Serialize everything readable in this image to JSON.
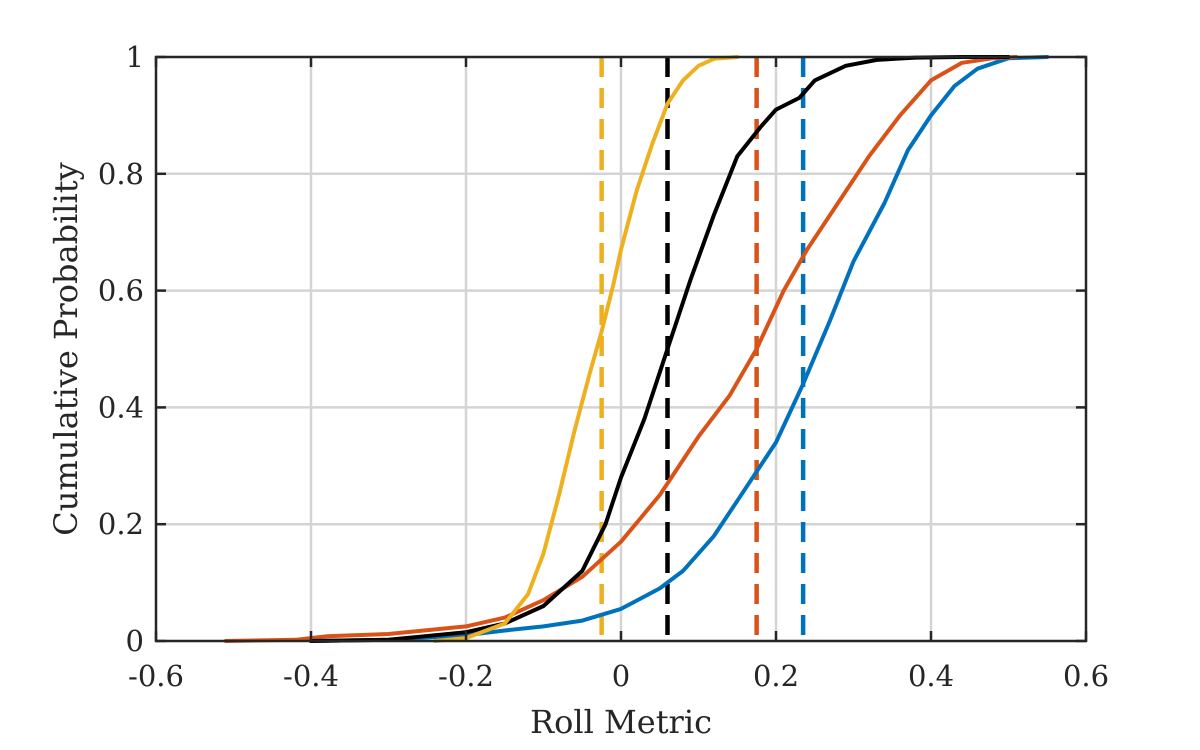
{
  "chart_data": {
    "type": "line",
    "title": "",
    "xlabel": "Roll Metric",
    "ylabel": "Cumulative Probability",
    "xlim": [
      -0.6,
      0.6
    ],
    "ylim": [
      0,
      1
    ],
    "xticks": [
      "-0.6",
      "-0.4",
      "-0.2",
      "0",
      "0.2",
      "0.4",
      "0.6"
    ],
    "yticks": [
      "0",
      "0.2",
      "0.4",
      "0.6",
      "0.8",
      "1"
    ],
    "grid": true,
    "legend": "none",
    "series": [
      {
        "color": "#0072BD",
        "x": [
          -0.4,
          -0.3,
          -0.2,
          -0.15,
          -0.1,
          -0.05,
          0.0,
          0.05,
          0.08,
          0.12,
          0.15,
          0.2,
          0.235,
          0.27,
          0.3,
          0.34,
          0.37,
          0.4,
          0.43,
          0.46,
          0.5,
          0.55
        ],
        "y": [
          0.0,
          0.002,
          0.01,
          0.018,
          0.025,
          0.035,
          0.055,
          0.09,
          0.12,
          0.18,
          0.24,
          0.34,
          0.44,
          0.55,
          0.65,
          0.75,
          0.84,
          0.9,
          0.95,
          0.98,
          0.998,
          1.0
        ]
      },
      {
        "color": "#D95319",
        "x": [
          -0.51,
          -0.42,
          -0.38,
          -0.3,
          -0.2,
          -0.15,
          -0.1,
          -0.05,
          0.0,
          0.05,
          0.1,
          0.14,
          0.175,
          0.21,
          0.24,
          0.28,
          0.32,
          0.36,
          0.4,
          0.44,
          0.48,
          0.51
        ],
        "y": [
          0.0,
          0.002,
          0.008,
          0.012,
          0.025,
          0.04,
          0.07,
          0.11,
          0.17,
          0.25,
          0.35,
          0.42,
          0.5,
          0.6,
          0.67,
          0.75,
          0.83,
          0.9,
          0.96,
          0.99,
          0.998,
          1.0
        ]
      },
      {
        "color": "#000000",
        "x": [
          -0.4,
          -0.3,
          -0.2,
          -0.15,
          -0.1,
          -0.05,
          -0.02,
          0.0,
          0.03,
          0.06,
          0.09,
          0.12,
          0.15,
          0.18,
          0.2,
          0.23,
          0.25,
          0.29,
          0.33,
          0.38,
          0.44,
          0.5
        ],
        "y": [
          0.0,
          0.002,
          0.015,
          0.03,
          0.06,
          0.12,
          0.2,
          0.28,
          0.38,
          0.5,
          0.62,
          0.73,
          0.83,
          0.88,
          0.91,
          0.93,
          0.96,
          0.985,
          0.995,
          0.999,
          1.0,
          1.0
        ]
      },
      {
        "color": "#EDB120",
        "x": [
          -0.24,
          -0.2,
          -0.15,
          -0.12,
          -0.1,
          -0.08,
          -0.06,
          -0.04,
          -0.025,
          -0.01,
          0.0,
          0.02,
          0.04,
          0.06,
          0.08,
          0.1,
          0.12,
          0.15
        ],
        "y": [
          0.0,
          0.005,
          0.03,
          0.08,
          0.15,
          0.25,
          0.36,
          0.46,
          0.53,
          0.61,
          0.67,
          0.77,
          0.85,
          0.92,
          0.96,
          0.985,
          0.997,
          1.0
        ]
      }
    ],
    "reference_lines": [
      {
        "x": -0.025,
        "color": "#EDB120",
        "style": "dashed"
      },
      {
        "x": 0.06,
        "color": "#000000",
        "style": "dashed"
      },
      {
        "x": 0.175,
        "color": "#D95319",
        "style": "dashed"
      },
      {
        "x": 0.235,
        "color": "#0072BD",
        "style": "dashed"
      }
    ]
  }
}
